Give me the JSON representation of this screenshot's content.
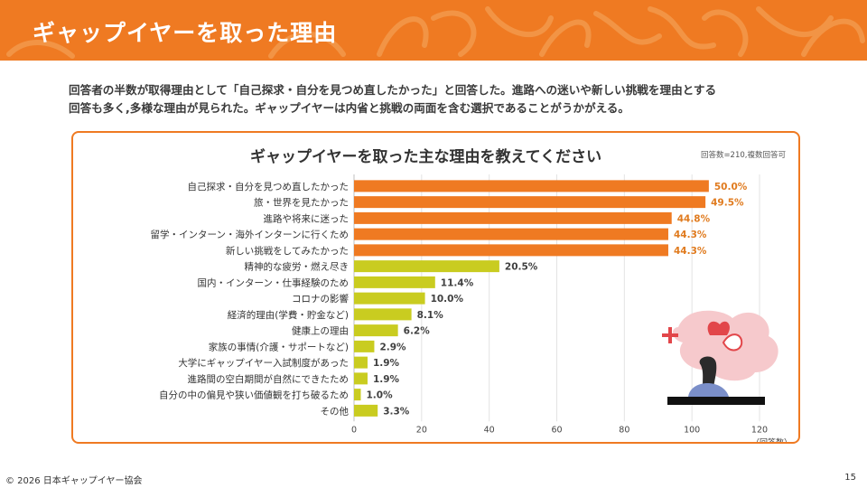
{
  "header": {
    "title": "ギャップイヤーを取った理由"
  },
  "summary": {
    "line1": "回答者の半数が取得理由として「自己探求・自分を見つめ直したかった」と回答した。進路への迷いや新しい挑戦を理由とする",
    "line2": "回答も多く,多様な理由が見られた。ギャップイヤーは内省と挑戦の両面を含む選択であることがうかがえる。"
  },
  "chart": {
    "title": "ギャップイヤーを取った主な理由を教えてください",
    "note": "回答数=210,複数回答可"
  },
  "chart_data": {
    "type": "bar",
    "orientation": "horizontal",
    "title": "ギャップイヤーを取った主な理由を教えてください",
    "xlabel": "（回答数）",
    "xlim": [
      0,
      120
    ],
    "xticks": [
      0,
      20,
      40,
      60,
      80,
      100,
      120
    ],
    "categories": [
      "自己探求・自分を見つめ直したかった",
      "旅・世界を見たかった",
      "進路や将来に迷った",
      "留学・インターン・海外インターンに行くため",
      "新しい挑戦をしてみたかった",
      "精神的な疲労・燃え尽き",
      "国内・インターン・仕事経験のため",
      "コロナの影響",
      "経済的理由(学費・貯金など)",
      "健康上の理由",
      "家族の事情(介護・サポートなど)",
      "大学にギャップイヤー入試制度があった",
      "進路間の空白期間が自然にできたため",
      "自分の中の偏見や狭い価値観を打ち破るため",
      "その他"
    ],
    "values": [
      105,
      104,
      94,
      93,
      93,
      43,
      24,
      21,
      17,
      13,
      6,
      4,
      4,
      2,
      7
    ],
    "labels": [
      "50.0%",
      "49.5%",
      "44.8%",
      "44.3%",
      "44.3%",
      "20.5%",
      "11.4%",
      "10.0%",
      "8.1%",
      "6.2%",
      "2.9%",
      "1.9%",
      "1.9%",
      "1.0%",
      "3.3%"
    ],
    "highlight_count": 5,
    "colors": {
      "highlight": "#ef7a22",
      "other": "#c9cc20",
      "highlight_label": "#e07b1f",
      "other_label": "#404040"
    },
    "grid": true
  },
  "footer": {
    "copyright": "© 2026 日本ギャップイヤー協会",
    "page": "15"
  }
}
